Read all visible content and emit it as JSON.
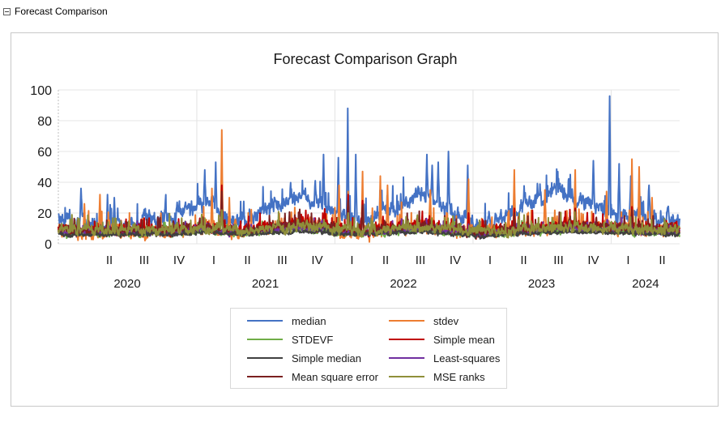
{
  "header": {
    "title": "Forecast Comparison"
  },
  "chart_data": {
    "type": "line",
    "title": "Forecast Comparison Graph",
    "xlabel": "",
    "ylabel": "",
    "ylim": [
      0,
      100
    ],
    "yticks": [
      0,
      20,
      40,
      60,
      80,
      100
    ],
    "xlim": [
      "2020-01-01",
      "2024-06-30"
    ],
    "quarter_labels": [
      {
        "label": "II",
        "date": "2020-05-15"
      },
      {
        "label": "III",
        "date": "2020-08-15"
      },
      {
        "label": "IV",
        "date": "2020-11-15"
      },
      {
        "label": "I",
        "date": "2021-02-15"
      },
      {
        "label": "II",
        "date": "2021-05-15"
      },
      {
        "label": "III",
        "date": "2021-08-15"
      },
      {
        "label": "IV",
        "date": "2021-11-15"
      },
      {
        "label": "I",
        "date": "2022-02-15"
      },
      {
        "label": "II",
        "date": "2022-05-15"
      },
      {
        "label": "III",
        "date": "2022-08-15"
      },
      {
        "label": "IV",
        "date": "2022-11-15"
      },
      {
        "label": "I",
        "date": "2023-02-15"
      },
      {
        "label": "II",
        "date": "2023-05-15"
      },
      {
        "label": "III",
        "date": "2023-08-15"
      },
      {
        "label": "IV",
        "date": "2023-11-15"
      },
      {
        "label": "I",
        "date": "2024-02-15"
      },
      {
        "label": "II",
        "date": "2024-05-15"
      }
    ],
    "year_labels": [
      {
        "label": "2020",
        "date": "2020-07-01"
      },
      {
        "label": "2021",
        "date": "2021-07-01"
      },
      {
        "label": "2022",
        "date": "2022-07-01"
      },
      {
        "label": "2023",
        "date": "2023-07-01"
      },
      {
        "label": "2024",
        "date": "2024-04-01"
      }
    ],
    "year_gridlines": [
      "2021-01-01",
      "2022-01-01",
      "2023-01-01",
      "2024-01-01"
    ],
    "grid": true,
    "legend_position": "bottom",
    "series": [
      {
        "name": "median",
        "color": "#4472C4",
        "base": [
          [
            0,
            16
          ],
          [
            150,
            10
          ],
          [
            300,
            17
          ],
          [
            390,
            26
          ],
          [
            470,
            13
          ],
          [
            640,
            32
          ],
          [
            800,
            13
          ],
          [
            960,
            32
          ],
          [
            1120,
            11
          ],
          [
            1330,
            35
          ],
          [
            1440,
            20
          ],
          [
            1642,
            16
          ]
        ],
        "noise": 6,
        "spikes": [
          [
            "2020-03-01",
            36
          ],
          [
            "2020-05-10",
            32
          ],
          [
            "2020-05-28",
            30
          ],
          [
            "2020-10-10",
            28
          ],
          [
            "2020-11-10",
            27
          ],
          [
            "2021-01-22",
            48
          ],
          [
            "2021-02-20",
            53
          ],
          [
            "2021-12-02",
            58
          ],
          [
            "2021-11-10",
            41
          ],
          [
            "2022-01-10",
            56
          ],
          [
            "2022-02-04",
            88
          ],
          [
            "2022-02-25",
            58
          ],
          [
            "2022-09-01",
            58
          ],
          [
            "2022-09-15",
            51
          ],
          [
            "2022-10-01",
            53
          ],
          [
            "2022-10-28",
            60
          ],
          [
            "2022-12-18",
            51
          ],
          [
            "2023-11-15",
            54
          ],
          [
            "2023-12-28",
            96
          ],
          [
            "2024-01-22",
            52
          ],
          [
            "2024-02-22",
            44
          ],
          [
            "2024-04-10",
            38
          ]
        ]
      },
      {
        "name": "stdev",
        "color": "#ED7D31",
        "base": [
          [
            0,
            8
          ],
          [
            300,
            8
          ],
          [
            390,
            11
          ],
          [
            470,
            8
          ],
          [
            640,
            13
          ],
          [
            800,
            7
          ],
          [
            960,
            12
          ],
          [
            1120,
            7
          ],
          [
            1330,
            12
          ],
          [
            1642,
            9
          ]
        ],
        "noise": 5,
        "spikes": [
          [
            "2020-03-10",
            26
          ],
          [
            "2020-04-20",
            32
          ],
          [
            "2021-02-10",
            36
          ],
          [
            "2021-03-08",
            74
          ],
          [
            "2021-03-28",
            30
          ],
          [
            "2022-01-12",
            38
          ],
          [
            "2022-02-05",
            34
          ],
          [
            "2022-03-15",
            47
          ],
          [
            "2022-05-01",
            44
          ],
          [
            "2022-05-20",
            38
          ],
          [
            "2022-09-10",
            35
          ],
          [
            "2022-12-20",
            42
          ],
          [
            "2023-04-20",
            48
          ],
          [
            "2023-07-10",
            35
          ],
          [
            "2023-09-28",
            48
          ],
          [
            "2023-12-20",
            34
          ],
          [
            "2024-02-25",
            55
          ],
          [
            "2024-03-15",
            50
          ],
          [
            "2024-04-18",
            30
          ]
        ]
      },
      {
        "name": "STDEVF",
        "color": "#70AD47",
        "base": [
          [
            0,
            7
          ],
          [
            300,
            7
          ],
          [
            390,
            9
          ],
          [
            470,
            6
          ],
          [
            640,
            10
          ],
          [
            800,
            6
          ],
          [
            960,
            9
          ],
          [
            1120,
            6
          ],
          [
            1330,
            9
          ],
          [
            1642,
            7
          ]
        ],
        "noise": 2.5,
        "spikes": []
      },
      {
        "name": "Simple mean",
        "color": "#C00000",
        "base": [
          [
            0,
            9
          ],
          [
            300,
            9
          ],
          [
            390,
            12
          ],
          [
            470,
            8
          ],
          [
            640,
            14
          ],
          [
            800,
            8
          ],
          [
            960,
            13
          ],
          [
            1120,
            7
          ],
          [
            1330,
            13
          ],
          [
            1642,
            10
          ]
        ],
        "noise": 3.5,
        "spikes": [
          [
            "2021-03-08",
            38
          ],
          [
            "2022-02-05",
            32
          ],
          [
            "2022-03-15",
            28
          ],
          [
            "2022-12-20",
            20
          ],
          [
            "2023-04-20",
            23
          ],
          [
            "2023-09-28",
            23
          ],
          [
            "2024-02-25",
            24
          ]
        ]
      },
      {
        "name": "Simple median",
        "color": "#404040",
        "base": [
          [
            0,
            6
          ],
          [
            300,
            6
          ],
          [
            390,
            8
          ],
          [
            470,
            6
          ],
          [
            640,
            8
          ],
          [
            800,
            6
          ],
          [
            960,
            8
          ],
          [
            1120,
            5
          ],
          [
            1330,
            8
          ],
          [
            1642,
            6
          ]
        ],
        "noise": 1.5,
        "spikes": []
      },
      {
        "name": "Least-squares",
        "color": "#7030A0",
        "base": [
          [
            0,
            8
          ],
          [
            300,
            8
          ],
          [
            390,
            10
          ],
          [
            470,
            7
          ],
          [
            640,
            11
          ],
          [
            800,
            7
          ],
          [
            960,
            10
          ],
          [
            1120,
            7
          ],
          [
            1330,
            10
          ],
          [
            1642,
            8
          ]
        ],
        "noise": 2.5,
        "spikes": []
      },
      {
        "name": "Mean square error",
        "color": "#7B2020",
        "base": [
          [
            0,
            9
          ],
          [
            300,
            9
          ],
          [
            390,
            11
          ],
          [
            470,
            8
          ],
          [
            640,
            13
          ],
          [
            800,
            8
          ],
          [
            960,
            12
          ],
          [
            1120,
            7
          ],
          [
            1330,
            12
          ],
          [
            1642,
            9
          ]
        ],
        "noise": 3,
        "spikes": [
          [
            "2021-03-08",
            34
          ],
          [
            "2022-02-05",
            28
          ],
          [
            "2022-03-15",
            25
          ],
          [
            "2023-04-20",
            20
          ],
          [
            "2023-09-28",
            22
          ],
          [
            "2024-02-25",
            22
          ]
        ]
      },
      {
        "name": "MSE ranks",
        "color": "#8F8F3A",
        "base": [
          [
            0,
            9
          ],
          [
            300,
            9
          ],
          [
            390,
            10
          ],
          [
            470,
            8
          ],
          [
            640,
            12
          ],
          [
            800,
            8
          ],
          [
            960,
            11
          ],
          [
            1120,
            8
          ],
          [
            1330,
            11
          ],
          [
            1642,
            9
          ]
        ],
        "noise": 3.5,
        "spikes": [
          [
            "2021-03-08",
            22
          ],
          [
            "2022-02-05",
            20
          ]
        ]
      }
    ]
  },
  "legend": {
    "items": [
      {
        "label": "median",
        "color": "#4472C4"
      },
      {
        "label": "stdev",
        "color": "#ED7D31"
      },
      {
        "label": "STDEVF",
        "color": "#70AD47"
      },
      {
        "label": "Simple mean",
        "color": "#C00000"
      },
      {
        "label": "Simple median",
        "color": "#404040"
      },
      {
        "label": "Least-squares",
        "color": "#7030A0"
      },
      {
        "label": "Mean square error",
        "color": "#7B2020"
      },
      {
        "label": "MSE ranks",
        "color": "#8F8F3A"
      }
    ]
  }
}
